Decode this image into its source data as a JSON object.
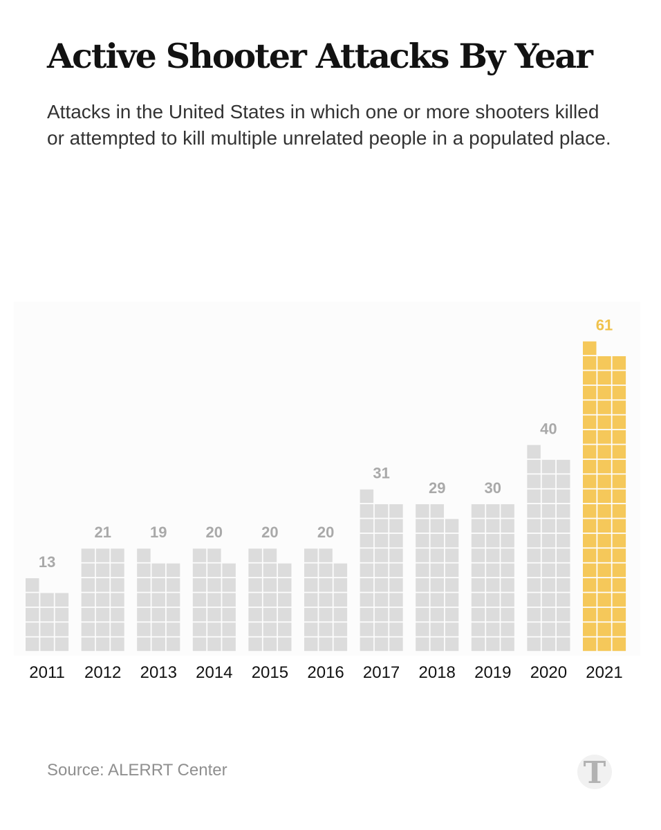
{
  "title": "Active Shooter Attacks By Year",
  "subtitle": "Attacks in the United States in which one or more shooters killed or attempted to kill multiple unrelated people in a populated place.",
  "source": "Source: ALERRT Center",
  "logo": {
    "icon": "nyt-t-logo-icon",
    "letter": "T"
  },
  "colors": {
    "bar": "#dcdcdc",
    "highlight": "#f5c85a",
    "label": "#a9a9a9",
    "highlight_label": "#f0c24c",
    "plot_background": "#fcfcfc"
  },
  "chart_data": {
    "type": "bar",
    "title": "Active Shooter Attacks By Year",
    "xlabel": "",
    "ylabel": "",
    "categories": [
      "2011",
      "2012",
      "2013",
      "2014",
      "2015",
      "2016",
      "2017",
      "2018",
      "2019",
      "2020",
      "2021"
    ],
    "values": [
      13,
      21,
      19,
      20,
      20,
      20,
      31,
      29,
      30,
      40,
      61
    ],
    "highlight": [
      "2021"
    ],
    "unit_grid_columns": 3,
    "grid": false,
    "ylim": [
      0,
      70
    ]
  }
}
